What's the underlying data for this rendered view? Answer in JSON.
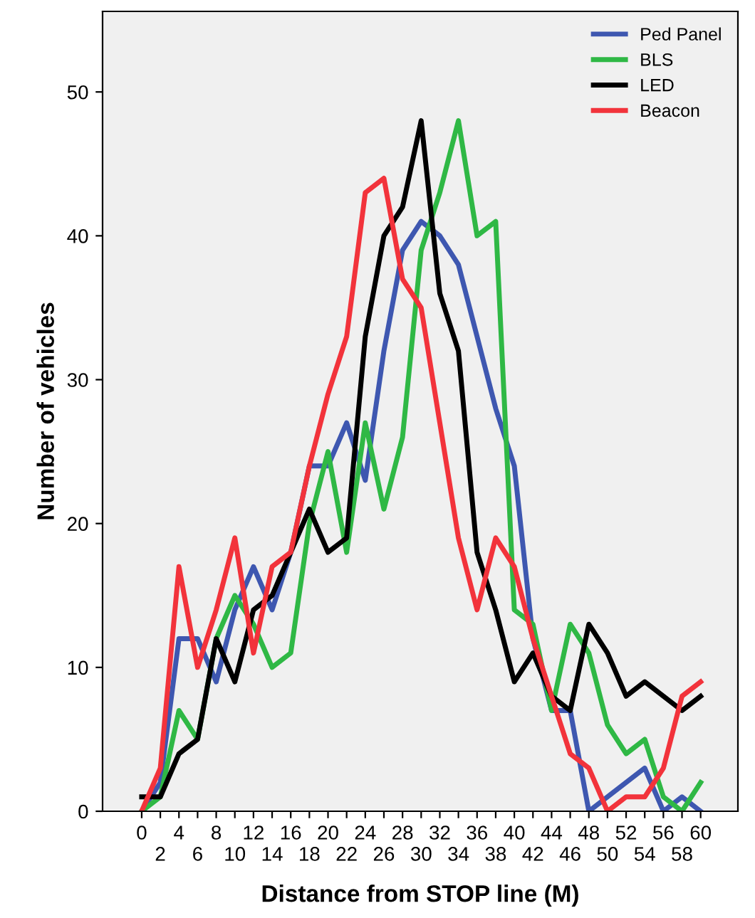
{
  "chart_data": {
    "type": "line",
    "xlabel": "Distance from STOP line (M)",
    "ylabel": "Number of vehicles",
    "categories": [
      "0",
      "2",
      "4",
      "6",
      "8",
      "10",
      "12",
      "14",
      "16",
      "18",
      "20",
      "22",
      "24",
      "26",
      "28",
      "30",
      "32",
      "34",
      "36",
      "38",
      "40",
      "42",
      "44",
      "46",
      "48",
      "50",
      "52",
      "54",
      "56",
      "58",
      "60"
    ],
    "series": [
      {
        "name": "Ped Panel",
        "color": "#3e57b0",
        "values": [
          0,
          2,
          12,
          12,
          9,
          14,
          17,
          14,
          18,
          24,
          24,
          27,
          23,
          32,
          39,
          41,
          40,
          38,
          33,
          28,
          24,
          12,
          7,
          7,
          0,
          1,
          2,
          3,
          0,
          1,
          0
        ]
      },
      {
        "name": "BLS",
        "color": "#2fb845",
        "values": [
          0,
          1,
          7,
          5,
          12,
          15,
          13,
          10,
          11,
          20,
          25,
          18,
          27,
          21,
          26,
          39,
          43,
          48,
          40,
          41,
          14,
          13,
          7,
          13,
          11,
          6,
          4,
          5,
          1,
          0,
          2
        ]
      },
      {
        "name": "LED",
        "color": "#000000",
        "values": [
          1,
          1,
          4,
          5,
          12,
          9,
          14,
          15,
          18,
          21,
          18,
          19,
          33,
          40,
          42,
          48,
          36,
          32,
          18,
          14,
          9,
          11,
          8,
          7,
          13,
          11,
          8,
          9,
          8,
          7,
          8
        ]
      },
      {
        "name": "Beacon",
        "color": "#f2333b",
        "values": [
          0,
          3,
          17,
          10,
          14,
          19,
          11,
          17,
          18,
          24,
          29,
          33,
          43,
          44,
          37,
          35,
          27,
          19,
          14,
          19,
          17,
          12,
          8,
          4,
          3,
          0,
          1,
          1,
          3,
          8,
          9
        ]
      }
    ],
    "ylim": [
      0,
      55.6
    ],
    "yticks": [
      0,
      10,
      20,
      30,
      40,
      50
    ],
    "grid": false,
    "legend": "top right",
    "marker": "none",
    "line_style": "solid"
  }
}
